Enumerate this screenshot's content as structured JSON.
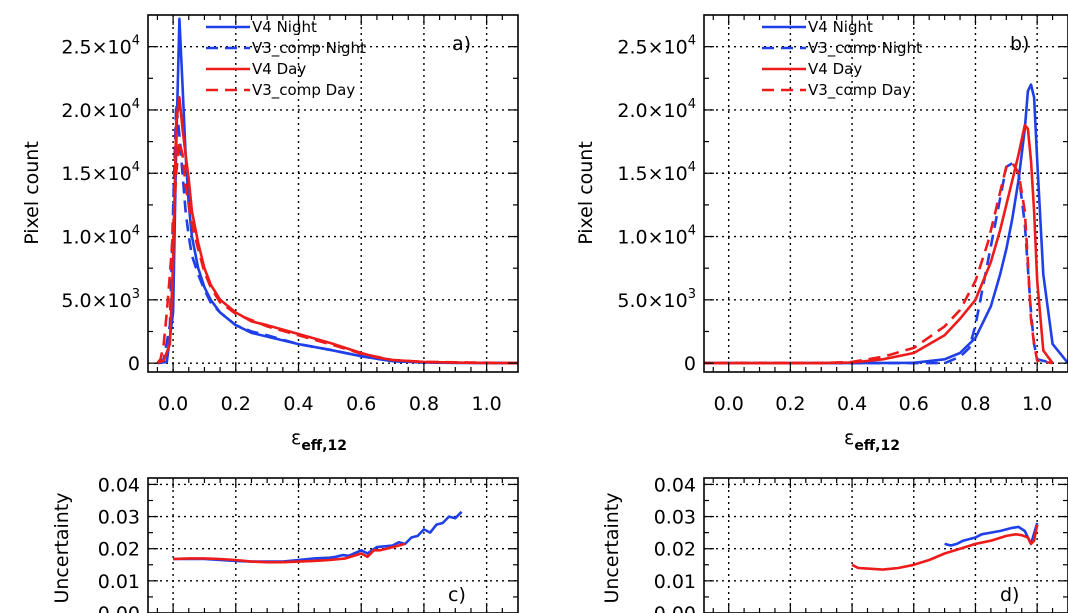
{
  "colors": {
    "night": "#1f3fe8",
    "day": "#ee1b1b"
  },
  "chart_data": [
    {
      "id": "a",
      "type": "line",
      "panel_label": "a)",
      "xlabel": "ε",
      "xlabel_sub": "eff,12",
      "ylabel": "Pixel count",
      "xlim": [
        -0.08,
        1.1
      ],
      "ylim": [
        -700,
        27500
      ],
      "xticks": [
        0.0,
        0.2,
        0.4,
        0.6,
        0.8,
        1.0
      ],
      "xtick_labels": [
        "0.0",
        "0.2",
        "0.4",
        "0.6",
        "0.8",
        "1.0"
      ],
      "yticks": [
        0,
        5000,
        10000,
        15000,
        20000,
        25000
      ],
      "ytick_labels": [
        {
          "m": "0",
          "e": ""
        },
        {
          "m": "5.0×10",
          "e": "3"
        },
        {
          "m": "1.0×10",
          "e": "4"
        },
        {
          "m": "1.5×10",
          "e": "4"
        },
        {
          "m": "2.0×10",
          "e": "4"
        },
        {
          "m": "2.5×10",
          "e": "4"
        }
      ],
      "grid": true,
      "legend": "top-left",
      "series": [
        {
          "name": "V4  Night",
          "style": "solid",
          "color": "night",
          "x": [
            -0.05,
            -0.02,
            0,
            0.01,
            0.02,
            0.03,
            0.04,
            0.05,
            0.06,
            0.08,
            0.1,
            0.12,
            0.15,
            0.2,
            0.25,
            0.3,
            0.4,
            0.5,
            0.6,
            0.7,
            0.8,
            0.9,
            1.0,
            1.1
          ],
          "y": [
            0,
            100,
            4000,
            17000,
            27200,
            22000,
            16500,
            12500,
            10000,
            7500,
            6000,
            5000,
            4000,
            3000,
            2400,
            2100,
            1500,
            1050,
            550,
            150,
            50,
            20,
            10,
            0
          ]
        },
        {
          "name": "V3_comp  Night",
          "style": "dashed",
          "color": "night",
          "x": [
            -0.05,
            -0.03,
            -0.01,
            0,
            0.01,
            0.02,
            0.03,
            0.04,
            0.05,
            0.06,
            0.08,
            0.1,
            0.12,
            0.15,
            0.2,
            0.25,
            0.3,
            0.4,
            0.5,
            0.6,
            0.7,
            0.8,
            1.1
          ],
          "y": [
            0,
            300,
            3000,
            12000,
            20500,
            18000,
            15000,
            12000,
            10000,
            8500,
            7000,
            5800,
            4800,
            4000,
            3000,
            2500,
            2200,
            1500,
            1050,
            550,
            150,
            50,
            0
          ]
        },
        {
          "name": "V4  Day",
          "style": "solid",
          "color": "day",
          "x": [
            -0.05,
            -0.03,
            -0.01,
            0,
            0.01,
            0.02,
            0.03,
            0.04,
            0.05,
            0.06,
            0.08,
            0.1,
            0.12,
            0.15,
            0.2,
            0.25,
            0.3,
            0.4,
            0.5,
            0.6,
            0.65,
            0.7,
            0.8,
            0.9,
            1.0,
            1.1
          ],
          "y": [
            0,
            200,
            1500,
            8000,
            19000,
            21000,
            18500,
            16500,
            14500,
            12000,
            9500,
            7500,
            6200,
            5000,
            4000,
            3300,
            3000,
            2300,
            1600,
            800,
            450,
            250,
            100,
            40,
            10,
            0
          ]
        },
        {
          "name": "V3_comp  Day",
          "style": "dashed",
          "color": "day",
          "x": [
            -0.05,
            -0.04,
            -0.03,
            -0.02,
            -0.01,
            0,
            0.01,
            0.02,
            0.03,
            0.04,
            0.05,
            0.06,
            0.08,
            0.1,
            0.12,
            0.15,
            0.2,
            0.3,
            0.4,
            0.5,
            0.6,
            0.7,
            0.8,
            1.1
          ],
          "y": [
            0,
            300,
            1500,
            4000,
            7000,
            10500,
            15000,
            17500,
            16500,
            14000,
            12500,
            11000,
            9000,
            7200,
            6000,
            4800,
            3900,
            2900,
            2200,
            1500,
            750,
            250,
            100,
            0
          ]
        }
      ]
    },
    {
      "id": "b",
      "type": "line",
      "panel_label": "b)",
      "xlabel": "ε",
      "xlabel_sub": "eff,12",
      "ylabel": "Pixel count",
      "xlim": [
        -0.08,
        1.1
      ],
      "ylim": [
        -700,
        27500
      ],
      "xticks": [
        0.0,
        0.2,
        0.4,
        0.6,
        0.8,
        1.0
      ],
      "xtick_labels": [
        "0.0",
        "0.2",
        "0.4",
        "0.6",
        "0.8",
        "1.0"
      ],
      "yticks": [
        0,
        5000,
        10000,
        15000,
        20000,
        25000
      ],
      "ytick_labels": [
        {
          "m": "0",
          "e": ""
        },
        {
          "m": "5.0×10",
          "e": "3"
        },
        {
          "m": "1.0×10",
          "e": "4"
        },
        {
          "m": "1.5×10",
          "e": "4"
        },
        {
          "m": "2.0×10",
          "e": "4"
        },
        {
          "m": "2.5×10",
          "e": "4"
        }
      ],
      "grid": true,
      "legend": "top-left",
      "series": [
        {
          "name": "V4  Night",
          "style": "solid",
          "color": "night",
          "x": [
            -0.1,
            0.4,
            0.6,
            0.7,
            0.75,
            0.8,
            0.85,
            0.88,
            0.9,
            0.92,
            0.94,
            0.96,
            0.97,
            0.98,
            0.99,
            1.0,
            1.02,
            1.05,
            1.1
          ],
          "y": [
            0,
            0,
            30,
            300,
            800,
            2000,
            4500,
            7000,
            9000,
            11500,
            14500,
            18500,
            21500,
            22000,
            21000,
            16000,
            7000,
            1500,
            0
          ]
        },
        {
          "name": "V3_comp  Night",
          "style": "dashed",
          "color": "night",
          "x": [
            -0.1,
            0.6,
            0.7,
            0.75,
            0.78,
            0.8,
            0.82,
            0.84,
            0.86,
            0.88,
            0.9,
            0.92,
            0.94,
            0.96,
            0.97,
            0.98,
            0.99,
            1.0,
            1.05
          ],
          "y": [
            0,
            0,
            0,
            500,
            1200,
            3000,
            5500,
            8000,
            10500,
            13000,
            15500,
            15800,
            15000,
            11000,
            7500,
            4000,
            1500,
            300,
            0
          ]
        },
        {
          "name": "V4  Day",
          "style": "solid",
          "color": "day",
          "x": [
            -0.1,
            0.3,
            0.4,
            0.5,
            0.6,
            0.7,
            0.75,
            0.8,
            0.85,
            0.88,
            0.9,
            0.92,
            0.94,
            0.96,
            0.97,
            0.98,
            0.99,
            1.0,
            1.02,
            1.05
          ],
          "y": [
            0,
            0,
            50,
            300,
            800,
            2200,
            3500,
            5000,
            8000,
            10500,
            12500,
            14500,
            16500,
            18800,
            18500,
            16000,
            12000,
            6500,
            1000,
            0
          ]
        },
        {
          "name": "V3_comp  Day",
          "style": "dashed",
          "color": "day",
          "x": [
            -0.1,
            0.3,
            0.4,
            0.5,
            0.6,
            0.7,
            0.75,
            0.8,
            0.84,
            0.86,
            0.88,
            0.9,
            0.92,
            0.94,
            0.96,
            0.97,
            0.98,
            0.99,
            1.0,
            1.05
          ],
          "y": [
            0,
            0,
            100,
            500,
            1200,
            2900,
            4200,
            6500,
            9500,
            11500,
            13500,
            15500,
            15800,
            15000,
            12000,
            8000,
            3500,
            1500,
            200,
            0
          ]
        }
      ]
    },
    {
      "id": "c",
      "type": "line",
      "panel_label": "c)",
      "ylabel": "Uncertainty",
      "xlim": [
        -0.08,
        1.1
      ],
      "ylim": [
        0.0,
        0.042
      ],
      "yticks": [
        0.0,
        0.01,
        0.02,
        0.03,
        0.04
      ],
      "ytick_labels": [
        {
          "m": "0.00",
          "e": ""
        },
        {
          "m": "0.01",
          "e": ""
        },
        {
          "m": "0.02",
          "e": ""
        },
        {
          "m": "0.03",
          "e": ""
        },
        {
          "m": "0.04",
          "e": ""
        }
      ],
      "grid": true,
      "series": [
        {
          "name": "",
          "style": "solid",
          "color": "night",
          "x": [
            0,
            0.05,
            0.1,
            0.15,
            0.2,
            0.25,
            0.3,
            0.35,
            0.4,
            0.45,
            0.5,
            0.52,
            0.54,
            0.56,
            0.6,
            0.62,
            0.65,
            0.7,
            0.72,
            0.74,
            0.76,
            0.78,
            0.8,
            0.82,
            0.84,
            0.86,
            0.88,
            0.9,
            0.92
          ],
          "y": [
            0.0168,
            0.0168,
            0.0168,
            0.0165,
            0.0162,
            0.016,
            0.016,
            0.016,
            0.0165,
            0.017,
            0.0172,
            0.0175,
            0.018,
            0.0178,
            0.0195,
            0.0185,
            0.0205,
            0.021,
            0.022,
            0.0215,
            0.0235,
            0.024,
            0.026,
            0.025,
            0.0275,
            0.028,
            0.03,
            0.0295,
            0.0315
          ]
        },
        {
          "name": "",
          "style": "solid",
          "color": "day",
          "x": [
            0,
            0.05,
            0.1,
            0.15,
            0.2,
            0.25,
            0.3,
            0.35,
            0.4,
            0.45,
            0.5,
            0.55,
            0.6,
            0.62,
            0.64,
            0.66,
            0.68,
            0.7,
            0.72,
            0.74
          ],
          "y": [
            0.0168,
            0.017,
            0.017,
            0.0168,
            0.0165,
            0.016,
            0.0158,
            0.0158,
            0.016,
            0.0162,
            0.0165,
            0.017,
            0.0185,
            0.0175,
            0.0195,
            0.0195,
            0.02,
            0.0205,
            0.021,
            0.0215
          ]
        }
      ]
    },
    {
      "id": "d",
      "type": "line",
      "panel_label": "d)",
      "ylabel": "Uncertainty",
      "xlim": [
        -0.08,
        1.1
      ],
      "ylim": [
        0.0,
        0.042
      ],
      "yticks": [
        0.0,
        0.01,
        0.02,
        0.03,
        0.04
      ],
      "ytick_labels": [
        {
          "m": "0.00",
          "e": ""
        },
        {
          "m": "0.01",
          "e": ""
        },
        {
          "m": "0.02",
          "e": ""
        },
        {
          "m": "0.03",
          "e": ""
        },
        {
          "m": "0.04",
          "e": ""
        }
      ],
      "grid": true,
      "series": [
        {
          "name": "",
          "style": "solid",
          "color": "night",
          "x": [
            0.7,
            0.72,
            0.74,
            0.76,
            0.78,
            0.8,
            0.82,
            0.85,
            0.88,
            0.9,
            0.92,
            0.94,
            0.96,
            0.98,
            1.0
          ],
          "y": [
            0.0215,
            0.021,
            0.0215,
            0.0225,
            0.023,
            0.0235,
            0.0245,
            0.025,
            0.0255,
            0.026,
            0.0265,
            0.0268,
            0.0255,
            0.0215,
            0.028
          ]
        },
        {
          "name": "",
          "style": "solid",
          "color": "day",
          "x": [
            0.4,
            0.42,
            0.45,
            0.5,
            0.55,
            0.6,
            0.65,
            0.7,
            0.75,
            0.8,
            0.85,
            0.9,
            0.93,
            0.95,
            0.97,
            0.98,
            0.99,
            1.0
          ],
          "y": [
            0.015,
            0.014,
            0.0138,
            0.0135,
            0.014,
            0.015,
            0.0165,
            0.0185,
            0.02,
            0.0215,
            0.0225,
            0.024,
            0.0245,
            0.0242,
            0.0235,
            0.0215,
            0.0225,
            0.0275
          ]
        }
      ]
    }
  ]
}
